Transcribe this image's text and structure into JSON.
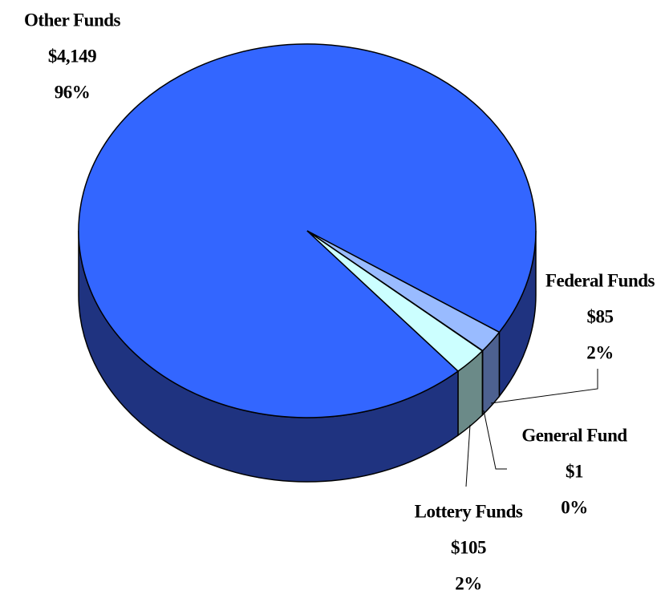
{
  "chart_data": {
    "type": "pie",
    "categories": [
      "Other Funds",
      "Federal Funds",
      "General Fund",
      "Lottery Funds"
    ],
    "values": [
      4149,
      85,
      1,
      105
    ],
    "value_labels": [
      "$4,149",
      "$85",
      "$1",
      "$105"
    ],
    "percent_labels": [
      "96%",
      "2%",
      "0%",
      "2%"
    ],
    "colors": [
      "#3366ff",
      "#99bbff",
      "#b8e0ff",
      "#ccffff"
    ],
    "side_colors": [
      "#1f3380",
      "#4d6190",
      "#3d5470",
      "#6b8a88"
    ]
  }
}
